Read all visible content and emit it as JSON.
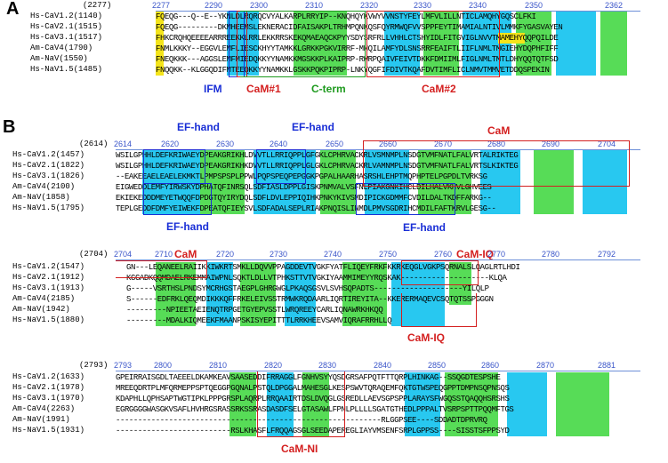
{
  "panels": {
    "a": {
      "letter": "A",
      "start": "(2277)",
      "ticks": [
        "2277",
        "2290",
        "2300",
        "2310",
        "2320",
        "2330",
        "2340",
        "2350",
        "2362"
      ],
      "rows": [
        {
          "label": "Hs-CaV1.2(1140)",
          "seq": "FQEQG---Q--E--YKNLDLRQRQCVYALKARPLRRYIP--KNQHQYKVWYVVNSTYFEYLMFVLILLNTICLAMQHYGQSCLFKI"
        },
        {
          "label": "Hs-CaV2.1(1515)",
          "seq": "FQEQG---------DKMHEEMSLEKNERACIDFAISAKPLTRHMPQNKQSFQYRMWQFVVSPPFEYTIMAMIALNTIVLMMKFYGASVAYEN"
        },
        {
          "label": "Hs-CaV3.1(1517)",
          "seq": "FHKCRQHQEEEEARRREEKKLRRLEKKRRSKEKQMAEAQCKPYYSDYSRFRLLVHHLCTSHYIDLFITGVIGLNVVTMAMEHYQQPQILDE"
        },
        {
          "label": "Am-CaV4(1790)",
          "seq": "FNMLKKKY--EGGVLEMFLIESCKHYYTAMKKLGRKKPGKVIRRF-MNQILAMFYDLSNSRRFEAIFTLIIFLNMLTMGIEHYDQPHFIFF"
        },
        {
          "label": "Am-NaV(1550)",
          "seq": "FNEQKKK---AGGSLEMFMIEDQKKYYNAMKKMGSKKPLKAIPRP-RWRPQAIVFEIVTDKKFDMIIMLFIGLNMLTMTLDHYQQTQTFSD"
        },
        {
          "label": "Hs-NaV1.5(1485)",
          "seq": "FNQQKK--KLGGQDIFMTEEQKKYYNAMKKLGSKKPQKPIPRP-LNKYQGFIFDIVTKQAFDVTIMFLICLNMVTMMVETDDQSPEKIN"
        }
      ],
      "features": {
        "ifm": "IFM",
        "cam1": "CaM#1",
        "cterm": "C-term",
        "cam2": "CaM#2"
      }
    },
    "b": {
      "letter": "B",
      "start": "(2614)",
      "ticks": [
        "2614",
        "2620",
        "2630",
        "2640",
        "2650",
        "2660",
        "2670",
        "2680",
        "2690",
        "2704"
      ],
      "rows": [
        {
          "label": "Hs-CaV1.2(1457)",
          "seq": "WSILGPHHLDEFKRIWAEYDPEAKGRIKHLDVVTLLRRIQPPLGFGKLCPHRVACKRLVSMNMPLNSDGTVMFNATLFALVRTALRIKTEG"
        },
        {
          "label": "Hs-CaV2.1(1822)",
          "seq": "WSILGPHHLDEFKRIWAEYDPEAKGRIKHKDVVTLLRRIQPPLGLGKLCPHRVACKRLVAMNMPLNSDGTVMFNATLFALVRTSLKIKTEG"
        },
        {
          "label": "Hs-CaV3.1(1826)",
          "seq": "--EAKEEAELEAELEKMKTLPMPSPSPLPPWLPQPSPEQPEPGGKPGPALHAARHASRSHLEHPTMQPHPTELPGPDLTVRKSG"
        },
        {
          "label": "Am-CaV4(2100)",
          "seq": "EIGWEDDLEMFYIRWSKYDPHATQFINRSQLSDFIASLDPPLGISKPNMVALVSFNLPIAKGNKIHCLDILHALVKHVLGHVEES"
        },
        {
          "label": "Am-NaV(1858)",
          "seq": "EKIEKEDDDMEYETWQQFDPDGTQYIRYDQLSDFLDVLEPPIQIHKPNKYKIVSMDIPICKGDMMFCVDILDALTKDFFARKG--"
        },
        {
          "label": "Hs-NaV1.5(1795)",
          "seq": "TEPLGEDDFDMFYEIWEKFDPEATQFIEYSVLSDFADALSEPLRIAKPNQISLINMDLPMVSGDRIHCMDILFAFTKRVLGESG--"
        }
      ],
      "features": {
        "ef1": "EF-hand",
        "ef2": "EF-hand",
        "ef3": "EF-hand",
        "ef4": "EF-hand",
        "cam": "CaM"
      }
    },
    "c": {
      "start": "(2704)",
      "ticks": [
        "2704",
        "2710",
        "2720",
        "2730",
        "2740",
        "2750",
        "2760",
        "2770",
        "2780",
        "2792"
      ],
      "rows": [
        {
          "label": "Hs-CaV1.2(1547)",
          "seq": "GN---LEQANEELRAIIKKIWKRTSMKLLDQVVPPAGDDEVTVGKFYATFLIQEYFRKFKKRKEQGLVGKPSQRNALSLQAGLRTLHDI"
        },
        {
          "label": "Hs-CaV2.1(1912)",
          "seq": "KGGADKQQMDAELRKEMMAIWPNLSQKTLDLLVTPHKSTTVTVGKIYAAMMIMEYYRQSKAK--------------------KLQA"
        },
        {
          "label": "Hs-CaV3.1(1913)",
          "seq": "G-----VSRTHSLPNDSYMCRHGSTAEGPLGHRGWGLPKAQSGSVLSVHSQPADTS--------------------YILQLP"
        },
        {
          "label": "Am-CaV4(2185)",
          "seq": "S------EDFRKLQEQMDIKKKQFFRKELEIVSSTRMWKRQDAARLIQRTIREYITA--KKERERMAQEVCSQTQTSSPGGGN"
        },
        {
          "label": "Am-NaV(1942)",
          "seq": "---------NPIEETAEIENQTRPGETGYEPVSSTLWRQREEYCARLIQNAWRKHKQQ"
        },
        {
          "label": "Hs-NaV1.5(1880)",
          "seq": "---------MDALKIQMEEKFMAANPSKISYEPITTTLRRKHEEVSAMVIQRAFRRHLLQ"
        }
      ],
      "features": {
        "cam": "CaM",
        "camiq1": "CaM-IQ",
        "camiq2": "CaM-IQ"
      }
    },
    "d": {
      "start": "(2793)",
      "ticks": [
        "2793",
        "2800",
        "2810",
        "2820",
        "2830",
        "2840",
        "2850",
        "2860",
        "2870",
        "2881"
      ],
      "rows": [
        {
          "label": "Hs-CaV1.2(1633)",
          "seq": "GPEIRRAISGDLTAEEELDKAMKEAVSAASEDDIFRRAGGLFGNHVSYYQSDGRSAFPQTFTTQRPLHINKAG--SSQGDTESPSHE"
        },
        {
          "label": "Hs-CaV2.1(1978)",
          "seq": "MREEQDRTPLMFQRMEPPSPTQEGGPGQNALPSTQLDPGGALMAHESGLKESPSWVTQRAQEMFQKTGTWSPEQGPPTDMPNSQPNSQS"
        },
        {
          "label": "Hs-CaV3.1(1970)",
          "seq": "KDAPHLLQPHSAPTWGTIPKLPPPGRSPLAQRPLRRQAAIRTDSLDVQGLGSREDLLAEVSGPSPPLARAYSFWGQSSTQAQQHSRSHS"
        },
        {
          "label": "Am-CaV4(2263)",
          "seq": "EGRGGGGWASGKVSAFLHVHRGSRASSRKSSRASDASDFSELGTASAWLFPNLPLLLLSGATGTHEDLPPPALTVSRPSPTTPQQMFTGS"
        },
        {
          "label": "Am-NaV(1991)",
          "seq": "------------------------------------------------------------RLGGPSEE----SDDADTDPRVRQ"
        },
        {
          "label": "Hs-NaV1.5(1931)",
          "seq": "--------------------------RSLKHASFLFRQQAGSGLSEEDAPEREGLIAYVMSENFSRPLGPPSS----SISSTSFPPSYD"
        }
      ],
      "features": {
        "camni": "CaM-NI"
      }
    }
  }
}
